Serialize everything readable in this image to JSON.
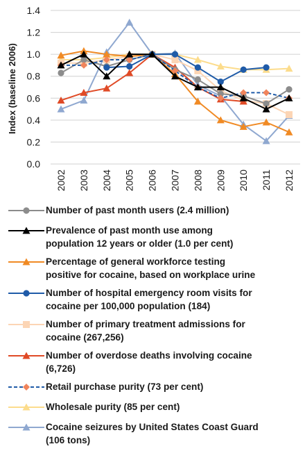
{
  "chart_data": {
    "type": "line",
    "ylabel": "Index (baseline 2006)",
    "xlabel": "",
    "ylim": [
      0,
      1.4
    ],
    "yticks": [
      "0.0",
      "0.2",
      "0.4",
      "0.6",
      "0.8",
      "1.0",
      "1.2",
      "1.4"
    ],
    "categories": [
      "2002",
      "2003",
      "2004",
      "2005",
      "2006",
      "2007",
      "2008",
      "2009",
      "2010",
      "2011",
      "2012"
    ],
    "grid": "horizontal",
    "legend_position": "bottom",
    "series": [
      {
        "name": "Number of past month users (2.4 million)",
        "color": "#8c8c8c",
        "marker": "circle",
        "dash": false,
        "values": [
          0.83,
          0.95,
          0.89,
          0.95,
          1.0,
          0.86,
          0.77,
          0.64,
          0.62,
          0.55,
          0.68
        ]
      },
      {
        "name": "Prevalence of past month use among population 12 years or older (1.0 per cent)",
        "color": "#000000",
        "marker": "triangle",
        "dash": false,
        "values": [
          0.9,
          1.0,
          0.8,
          1.0,
          1.0,
          0.8,
          0.7,
          0.7,
          0.6,
          0.5,
          0.6
        ]
      },
      {
        "name": "Percentage of general workforce testing positive for cocaine, based on workplace urine",
        "color": "#f08a24",
        "marker": "triangle",
        "dash": false,
        "values": [
          0.99,
          1.03,
          1.0,
          0.98,
          1.0,
          0.82,
          0.57,
          0.4,
          0.34,
          0.38,
          0.29
        ]
      },
      {
        "name": "Number of hospital emergency room visits for cocaine per 100,000 population (184)",
        "color": "#1f5ba8",
        "marker": "circle",
        "dash": false,
        "values": [
          null,
          null,
          0.88,
          0.89,
          1.0,
          1.0,
          0.88,
          0.75,
          0.86,
          0.88,
          null
        ]
      },
      {
        "name": "Number of primary treatment admissions for cocaine (267,256)",
        "color": "#fcd5b5",
        "marker": "square",
        "dash": false,
        "values": [
          0.92,
          0.92,
          0.95,
          0.98,
          1.0,
          0.95,
          0.85,
          0.67,
          0.58,
          0.55,
          0.45
        ]
      },
      {
        "name": "Number of overdose deaths involving cocaine (6,726)",
        "color": "#e04a26",
        "marker": "triangle",
        "dash": false,
        "values": [
          0.58,
          0.65,
          0.69,
          0.83,
          1.0,
          0.88,
          0.7,
          0.59,
          0.57,
          null,
          null
        ]
      },
      {
        "name": "Retail purchase purity (73 per cent)",
        "color": "#1f5ba8",
        "marker": "diamond",
        "markerColor": "#f0845c",
        "dash": true,
        "values": [
          0.9,
          0.9,
          0.95,
          0.95,
          1.0,
          0.85,
          0.7,
          0.6,
          0.65,
          0.65,
          0.6
        ]
      },
      {
        "name": "Wholesale purity (85 per cent)",
        "color": "#fcdc8c",
        "marker": "triangle",
        "dash": false,
        "values": [
          0.95,
          0.95,
          0.97,
          1.0,
          1.0,
          1.0,
          0.95,
          0.89,
          0.86,
          0.86,
          0.87
        ]
      },
      {
        "name": "Cocaine seizures by United States Coast Guard (106 tons)",
        "color": "#8fa8d0",
        "marker": "triangle",
        "dash": false,
        "values": [
          0.5,
          0.58,
          1.02,
          1.29,
          1.0,
          1.01,
          0.72,
          0.62,
          0.36,
          0.21,
          0.44
        ]
      }
    ]
  },
  "legend_lines": [
    [
      "Number of past month users (2.4 million)"
    ],
    [
      "Prevalence of past month use among",
      "population 12 years or older (1.0 per cent)"
    ],
    [
      "Percentage of general workforce testing",
      "positive for cocaine, based on workplace urine"
    ],
    [
      "Number of hospital emergency room visits for",
      "cocaine per 100,000 population (184)"
    ],
    [
      "Number of primary treatment admissions for",
      "cocaine (267,256)"
    ],
    [
      "Number of overdose deaths involving cocaine",
      "(6,726)"
    ],
    [
      "Retail purchase purity (73 per cent)"
    ],
    [
      "Wholesale purity (85 per cent)"
    ],
    [
      "Cocaine seizures by United States Coast Guard",
      "(106 tons)"
    ]
  ]
}
